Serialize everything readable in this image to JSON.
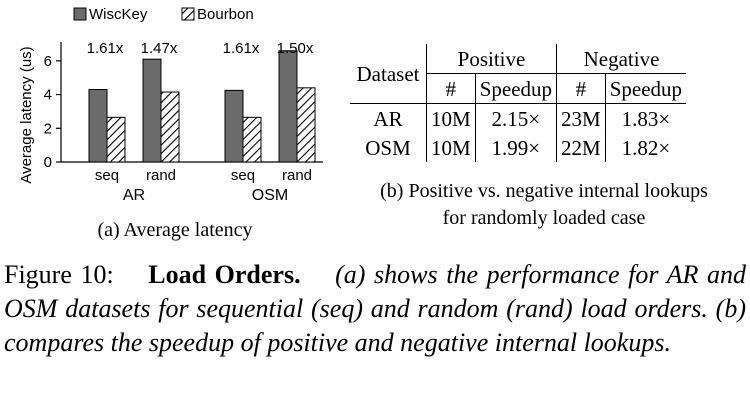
{
  "chart_data": {
    "type": "bar",
    "legend": [
      {
        "name": "WiscKey",
        "pattern": "solid",
        "color": "#6b6b6b"
      },
      {
        "name": "Bourbon",
        "pattern": "hatched",
        "color": "#ffffff"
      }
    ],
    "ylabel": "Average latency (us)",
    "ylim": [
      0,
      7
    ],
    "yticks": [
      0,
      2,
      4,
      6
    ],
    "groups": [
      {
        "name": "AR",
        "categories": [
          {
            "label": "seq",
            "wisckey": 4.3,
            "bourbon": 2.65,
            "annotation": "1.61x"
          },
          {
            "label": "rand",
            "wisckey": 6.1,
            "bourbon": 4.15,
            "annotation": "1.47x"
          }
        ]
      },
      {
        "name": "OSM",
        "categories": [
          {
            "label": "seq",
            "wisckey": 4.25,
            "bourbon": 2.65,
            "annotation": "1.61x"
          },
          {
            "label": "rand",
            "wisckey": 6.6,
            "bourbon": 4.4,
            "annotation": "1.50x"
          }
        ]
      }
    ],
    "subcaption": "(a) Average latency"
  },
  "table": {
    "dataset_header": "Dataset",
    "positive_header": "Positive",
    "negative_header": "Negative",
    "count_header": "#",
    "speedup_header": "Speedup",
    "rows": [
      {
        "dataset": "AR",
        "pos_count": "10M",
        "pos_speedup": "2.15×",
        "neg_count": "23M",
        "neg_speedup": "1.83×"
      },
      {
        "dataset": "OSM",
        "pos_count": "10M",
        "pos_speedup": "1.99×",
        "neg_count": "22M",
        "neg_speedup": "1.82×"
      }
    ],
    "subcaption_line1": "(b) Positive vs. negative internal lookups",
    "subcaption_line2": "for randomly loaded case"
  },
  "caption": {
    "label": "Figure 10:",
    "title": "Load Orders.",
    "body": "(a) shows the performance for AR and OSM datasets for sequential (seq) and random (rand) load orders. (b) compares the speedup of positive and negative internal lookups."
  }
}
